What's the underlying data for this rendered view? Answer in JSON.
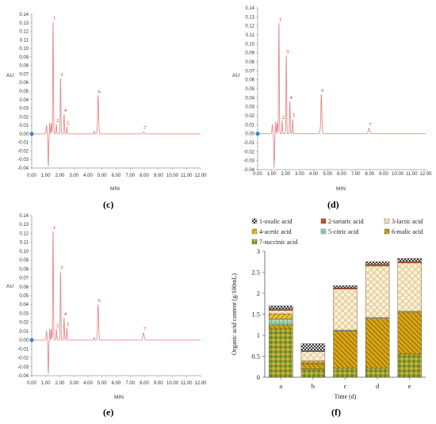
{
  "chart_data": [
    {
      "type": "line",
      "caption": "(c)",
      "ylabel": "AU",
      "xlabel": "MIN",
      "ylim": [
        -0.04,
        0.14
      ],
      "xlim": [
        0,
        12
      ],
      "x_ticks": [
        "0.00",
        "1.00",
        "2.00",
        "3.00",
        "4.00",
        "5.00",
        "6.00",
        "7.00",
        "8.00",
        "9.00",
        "10.00",
        "11.00",
        "12.00"
      ],
      "y_ticks": [
        "-0.04",
        "-0.03",
        "-0.02",
        "-0.01",
        "0.00",
        "0.01",
        "0.02",
        "0.03",
        "0.04",
        "0.05",
        "0.06",
        "0.07",
        "0.08",
        "0.09",
        "0.10",
        "0.11",
        "0.12",
        "0.13",
        "0.14"
      ],
      "peaks": [
        {
          "label": "1",
          "x": 1.52,
          "y": 0.131
        },
        {
          "label": "2",
          "x": 1.75,
          "y": 0.011
        },
        {
          "label": "3",
          "x": 2.05,
          "y": 0.065
        },
        {
          "label": "4",
          "x": 2.3,
          "y": 0.023
        },
        {
          "label": "5",
          "x": 2.5,
          "y": 0.008
        },
        {
          "label": "6",
          "x": 4.72,
          "y": 0.045
        },
        {
          "label": "7",
          "x": 7.95,
          "y": 0.002
        }
      ],
      "color": "#e8898a"
    },
    {
      "type": "line",
      "caption": "(d)",
      "ylabel": "AU",
      "xlabel": "MIN",
      "ylim": [
        -0.04,
        0.14
      ],
      "xlim": [
        0,
        12
      ],
      "x_ticks": [
        "0.00",
        "1.00",
        "2.00",
        "3.00",
        "4.00",
        "5.00",
        "6.00",
        "7.00",
        "8.00",
        "9.00",
        "10.00",
        "11.00",
        "12.00"
      ],
      "y_ticks": [
        "-0.04",
        "-0.03",
        "-0.02",
        "-0.01",
        "0.00",
        "0.01",
        "0.02",
        "0.03",
        "0.04",
        "0.05",
        "0.06",
        "0.07",
        "0.08",
        "0.09",
        "0.10",
        "0.11",
        "0.12",
        "0.13",
        "0.14"
      ],
      "peaks": [
        {
          "label": "1",
          "x": 1.52,
          "y": 0.123
        },
        {
          "label": "2",
          "x": 1.75,
          "y": 0.014
        },
        {
          "label": "3",
          "x": 2.05,
          "y": 0.087
        },
        {
          "label": "4",
          "x": 2.3,
          "y": 0.036
        },
        {
          "label": "5",
          "x": 2.5,
          "y": 0.016
        },
        {
          "label": "6",
          "x": 4.55,
          "y": 0.044
        },
        {
          "label": "7",
          "x": 7.95,
          "y": 0.006
        }
      ],
      "color": "#e8898a"
    },
    {
      "type": "line",
      "caption": "(e)",
      "ylabel": "AU",
      "xlabel": "MIN",
      "ylim": [
        -0.04,
        0.14
      ],
      "xlim": [
        0,
        12
      ],
      "x_ticks": [
        "0.00",
        "1.00",
        "2.00",
        "3.00",
        "4.00",
        "5.00",
        "6.00",
        "7.00",
        "8.00",
        "9.00",
        "10.00",
        "11.00",
        "12.00"
      ],
      "y_ticks": [
        "-0.04",
        "-0.03",
        "-0.02",
        "-0.01",
        "0.00",
        "0.01",
        "0.02",
        "0.03",
        "0.04",
        "0.05",
        "0.06",
        "0.07",
        "0.08",
        "0.09",
        "0.10",
        "0.11",
        "0.12",
        "0.13",
        "0.14"
      ],
      "peaks": [
        {
          "label": "1",
          "x": 1.52,
          "y": 0.122
        },
        {
          "label": "2",
          "x": 1.75,
          "y": 0.012
        },
        {
          "label": "3",
          "x": 2.05,
          "y": 0.077
        },
        {
          "label": "4",
          "x": 2.3,
          "y": 0.025
        },
        {
          "label": "5",
          "x": 2.5,
          "y": 0.013
        },
        {
          "label": "6",
          "x": 4.72,
          "y": 0.04
        },
        {
          "label": "7",
          "x": 7.95,
          "y": 0.008
        }
      ],
      "color": "#e8898a"
    },
    {
      "type": "bar",
      "stacked": true,
      "caption": "(f)",
      "xlabel": "Time (d)",
      "ylabel": "Organic acid content (g/100mL)",
      "ylim": [
        0,
        3
      ],
      "y_ticks": [
        "0",
        "0.5",
        "1",
        "1.5",
        "2",
        "2.5",
        "3"
      ],
      "categories": [
        "a",
        "b",
        "c",
        "d",
        "e"
      ],
      "legend_position": "top",
      "series": [
        {
          "name": "7-succinic acid",
          "color": "#6b8c2a",
          "values": [
            1.15,
            0.2,
            0.22,
            0.22,
            0.55
          ]
        },
        {
          "name": "6-malic acid",
          "color": "#d9b01c",
          "values": [
            0.1,
            0.12,
            0.88,
            1.18,
            1.0
          ]
        },
        {
          "name": "5-citric acid",
          "color": "#a9d5b5",
          "values": [
            0.14,
            0.02,
            0.02,
            0.02,
            0.02
          ]
        },
        {
          "name": "4-acetic acid",
          "color": "#f1c232",
          "values": [
            0.12,
            0.05,
            0.0,
            0.0,
            0.0
          ]
        },
        {
          "name": "3-lactic acid",
          "color": "#f6e7c5",
          "values": [
            0.08,
            0.22,
            0.98,
            1.23,
            1.15
          ]
        },
        {
          "name": "2-tartaric acid",
          "color": "#c0432a",
          "values": [
            0.04,
            0.02,
            0.03,
            0.04,
            0.04
          ]
        },
        {
          "name": "1-oxalic acid",
          "color": "#6a6a6a",
          "values": [
            0.07,
            0.17,
            0.05,
            0.06,
            0.07
          ]
        }
      ]
    }
  ]
}
